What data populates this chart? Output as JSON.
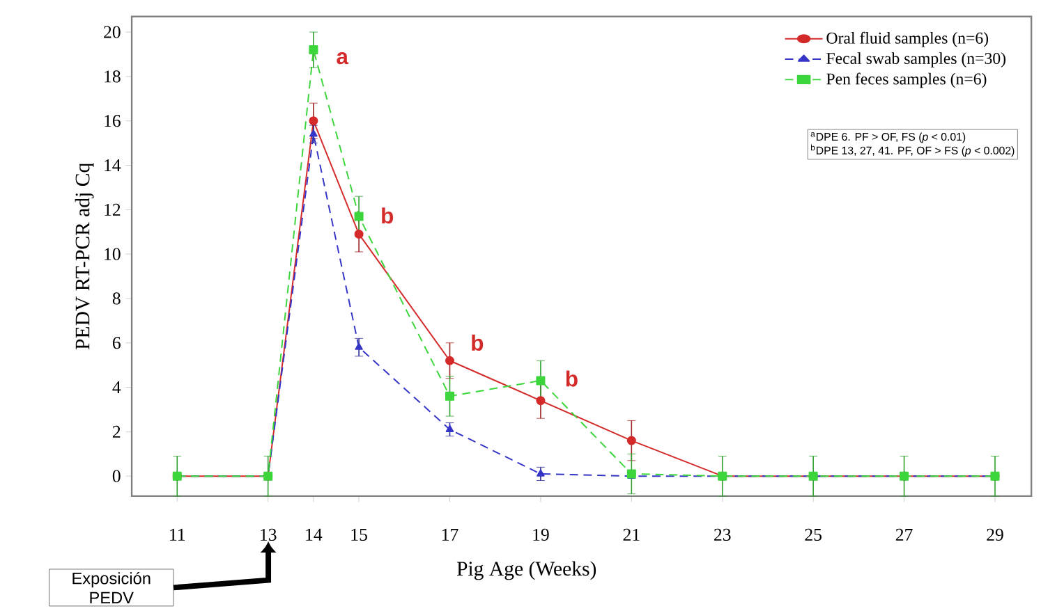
{
  "chart_data": {
    "type": "line",
    "xlabel": "Pig Age (Weeks)",
    "ylabel": "PEDV RT-PCR adj Cq",
    "x": [
      11,
      13,
      14,
      15,
      17,
      19,
      21,
      23,
      25,
      27,
      29
    ],
    "series": [
      {
        "name": "Oral fluid samples (n=6)",
        "color": "#d42a2a",
        "marker": "circle",
        "line_style": "solid",
        "values": [
          0,
          0,
          16,
          10.9,
          5.2,
          3.4,
          1.6,
          0,
          0,
          0,
          0
        ],
        "errors": [
          null,
          null,
          0.8,
          0.8,
          0.8,
          0.8,
          0.9,
          null,
          null,
          null,
          null
        ]
      },
      {
        "name": "Fecal swab samples (n=30)",
        "color": "#3535c8",
        "marker": "triangle",
        "line_style": "dashed",
        "values": [
          0,
          0,
          15.4,
          5.8,
          2.1,
          0.1,
          0,
          0,
          0,
          0,
          0
        ],
        "errors": [
          null,
          null,
          0.4,
          0.4,
          0.3,
          0.3,
          null,
          null,
          null,
          null,
          null
        ]
      },
      {
        "name": "Pen feces samples (n=6)",
        "color": "#3cd63c",
        "marker": "square",
        "line_style": "dashed",
        "values": [
          0,
          0,
          19.2,
          11.7,
          3.6,
          4.3,
          0.1,
          0,
          0,
          0,
          0
        ],
        "errors": [
          0.9,
          0.9,
          0.8,
          0.9,
          0.9,
          0.9,
          0.9,
          0.9,
          0.9,
          0.9,
          0.9
        ]
      }
    ],
    "xlim": [
      10,
      29.8
    ],
    "ylim": [
      -0.9,
      20.7
    ],
    "xticks": [
      11,
      13,
      14,
      15,
      17,
      19,
      21,
      23,
      25,
      27,
      29
    ],
    "yticks": [
      0,
      2,
      4,
      6,
      8,
      10,
      12,
      14,
      16,
      18,
      20
    ],
    "legend": "top right",
    "grid": false,
    "annotations": [
      "a",
      "b",
      "b",
      "b",
      "$^{a}$DPE 6.  PF > OF, FS (*p* < 0.01)",
      "$^{b}$DPE 13, 27, 41.  PF, OF > FS (*p* < 0.002)",
      "Exposición PEDV"
    ]
  }
}
